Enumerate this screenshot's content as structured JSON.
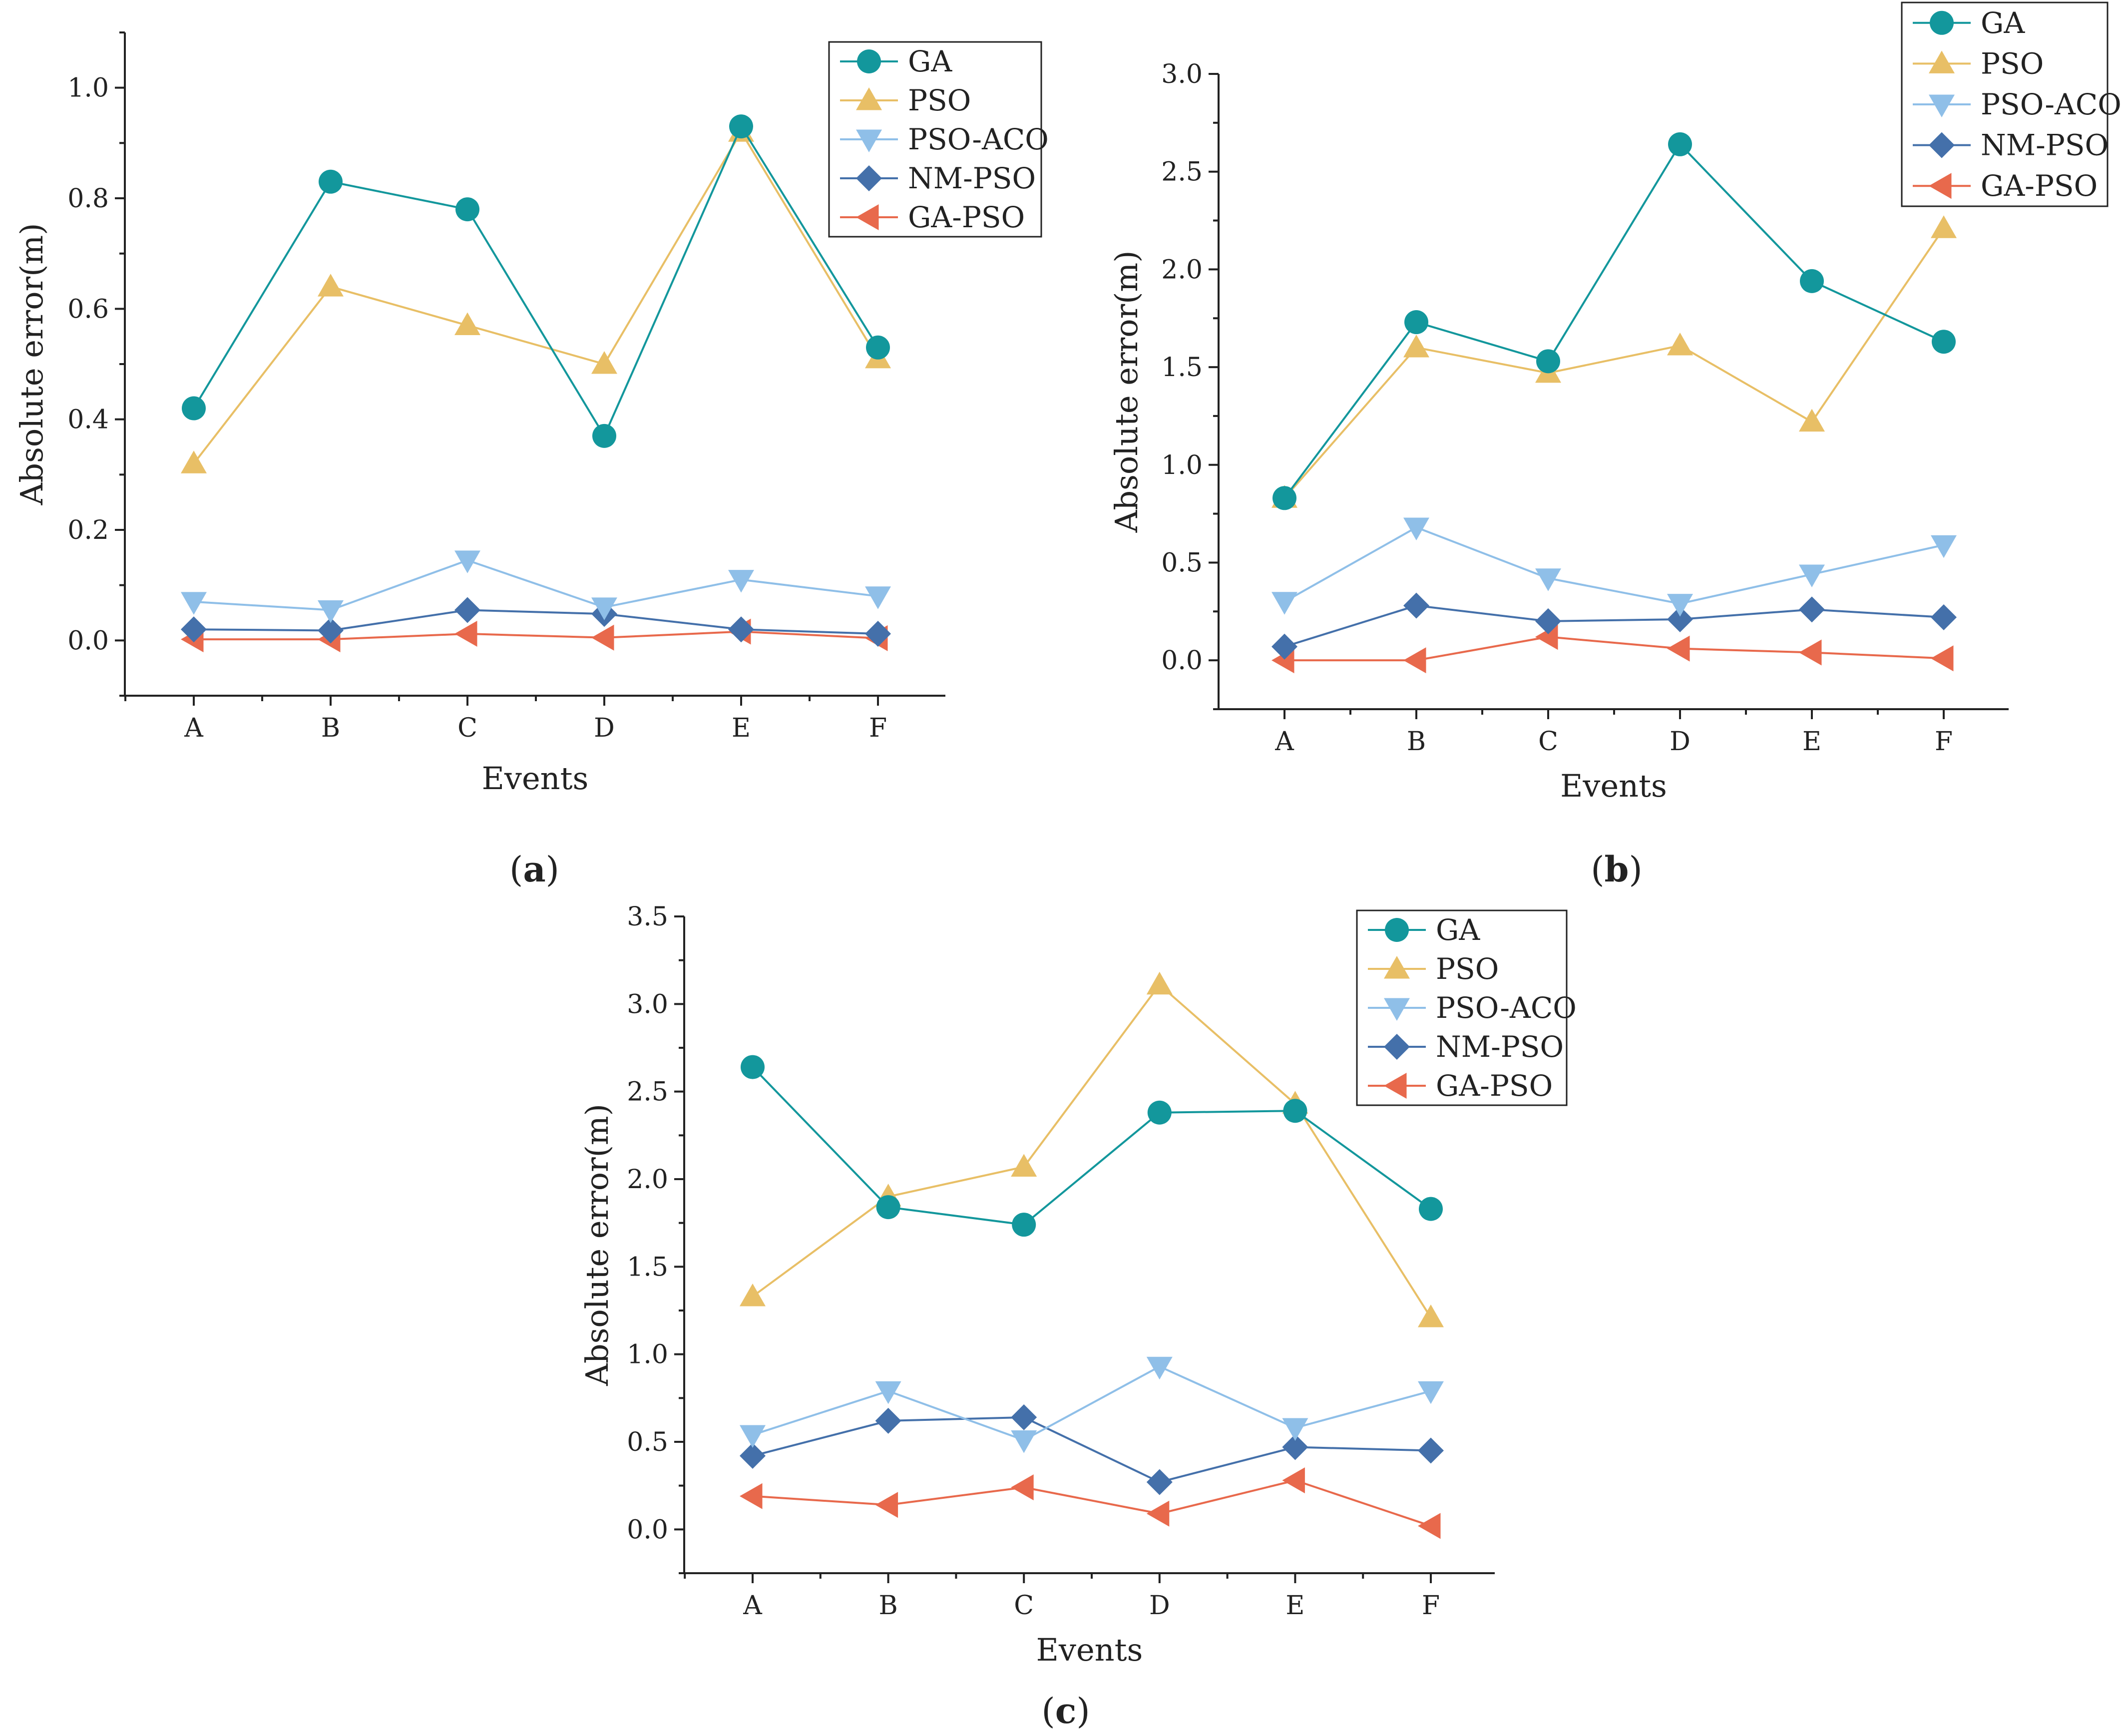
{
  "figure": {
    "series_styles": [
      {
        "name": "GA",
        "color": "#13979c",
        "marker": "circle"
      },
      {
        "name": "PSO",
        "color": "#e8bf66",
        "marker": "triangle-up"
      },
      {
        "name": "PSO-ACO",
        "color": "#8fbfe8",
        "marker": "triangle-down"
      },
      {
        "name": "NM-PSO",
        "color": "#4470aa",
        "marker": "diamond"
      },
      {
        "name": "GA-PSO",
        "color": "#e8694c",
        "marker": "triangle-left"
      }
    ]
  },
  "chart_data": [
    {
      "type": "line",
      "panel": "a",
      "panel_label_parts": [
        "(",
        "a",
        ")"
      ],
      "xlabel": "Events",
      "ylabel": "Absolute error(m)",
      "categories": [
        "A",
        "B",
        "C",
        "D",
        "E",
        "F"
      ],
      "ylim": [
        -0.1,
        1.1
      ],
      "yticks": [
        0.0,
        0.2,
        0.4,
        0.6,
        0.8,
        1.0
      ],
      "ytick_labels": [
        "0.0",
        "0.2",
        "0.4",
        "0.6",
        "0.8",
        "1.0"
      ],
      "legend_position": "top-right",
      "series": [
        {
          "name": "GA",
          "values": [
            0.42,
            0.83,
            0.78,
            0.37,
            0.93,
            0.53
          ]
        },
        {
          "name": "PSO",
          "values": [
            0.32,
            0.64,
            0.57,
            0.5,
            0.92,
            0.51
          ]
        },
        {
          "name": "PSO-ACO",
          "values": [
            0.07,
            0.055,
            0.145,
            0.06,
            0.11,
            0.08
          ]
        },
        {
          "name": "NM-PSO",
          "values": [
            0.02,
            0.018,
            0.055,
            0.048,
            0.02,
            0.012
          ]
        },
        {
          "name": "GA-PSO",
          "values": [
            0.002,
            0.002,
            0.012,
            0.005,
            0.016,
            0.004
          ]
        }
      ]
    },
    {
      "type": "line",
      "panel": "b",
      "panel_label_parts": [
        "(",
        "b",
        ")"
      ],
      "xlabel": "Events",
      "ylabel": "Absolute error(m)",
      "categories": [
        "A",
        "B",
        "C",
        "D",
        "E",
        "F"
      ],
      "ylim": [
        -0.25,
        3.0
      ],
      "yticks": [
        0.0,
        0.5,
        1.0,
        1.5,
        2.0,
        2.5,
        3.0
      ],
      "ytick_labels": [
        "0.0",
        "0.5",
        "1.0",
        "1.5",
        "2.0",
        "2.5",
        "3.0"
      ],
      "legend_position": "top-right",
      "series": [
        {
          "name": "GA",
          "values": [
            0.83,
            1.73,
            1.53,
            2.64,
            1.94,
            1.63
          ]
        },
        {
          "name": "PSO",
          "values": [
            0.83,
            1.6,
            1.47,
            1.61,
            1.22,
            2.21
          ]
        },
        {
          "name": "PSO-ACO",
          "values": [
            0.3,
            0.68,
            0.42,
            0.29,
            0.44,
            0.59
          ]
        },
        {
          "name": "NM-PSO",
          "values": [
            0.07,
            0.28,
            0.2,
            0.21,
            0.26,
            0.22
          ]
        },
        {
          "name": "GA-PSO",
          "values": [
            0.0,
            0.0,
            0.12,
            0.06,
            0.04,
            0.01
          ]
        }
      ]
    },
    {
      "type": "line",
      "panel": "c",
      "panel_label_parts": [
        "(",
        "c",
        ")"
      ],
      "xlabel": "Events",
      "ylabel": "Absolute error(m)",
      "categories": [
        "A",
        "B",
        "C",
        "D",
        "E",
        "F"
      ],
      "ylim": [
        -0.25,
        3.5
      ],
      "yticks": [
        0.0,
        0.5,
        1.0,
        1.5,
        2.0,
        2.5,
        3.0,
        3.5
      ],
      "ytick_labels": [
        "0.0",
        "0.5",
        "1.0",
        "1.5",
        "2.0",
        "2.5",
        "3.0",
        "3.5"
      ],
      "legend_position": "top-right",
      "series": [
        {
          "name": "GA",
          "values": [
            2.64,
            1.84,
            1.74,
            2.38,
            2.39,
            1.83
          ]
        },
        {
          "name": "PSO",
          "values": [
            1.33,
            1.9,
            2.07,
            3.11,
            2.43,
            1.21
          ]
        },
        {
          "name": "PSO-ACO",
          "values": [
            0.54,
            0.79,
            0.51,
            0.93,
            0.58,
            0.79
          ]
        },
        {
          "name": "NM-PSO",
          "values": [
            0.42,
            0.62,
            0.64,
            0.27,
            0.47,
            0.45
          ]
        },
        {
          "name": "GA-PSO",
          "values": [
            0.19,
            0.14,
            0.24,
            0.09,
            0.28,
            0.02
          ]
        }
      ]
    }
  ]
}
